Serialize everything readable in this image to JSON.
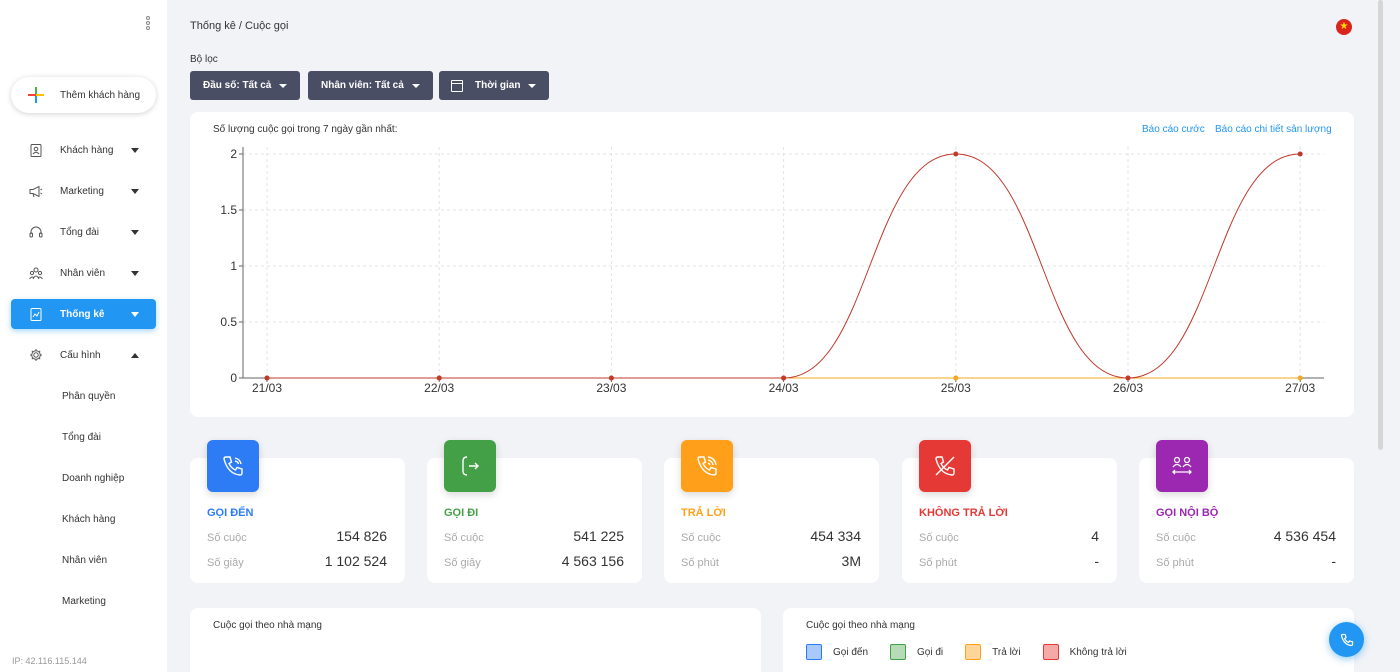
{
  "sidebar": {
    "add_label": "Thêm khách hàng",
    "items": [
      {
        "label": "Khách hàng",
        "icon": "contact-book-icon"
      },
      {
        "label": "Marketing",
        "icon": "megaphone-icon"
      },
      {
        "label": "Tổng đài",
        "icon": "headset-icon"
      },
      {
        "label": "Nhân viên",
        "icon": "team-icon"
      },
      {
        "label": "Thống kê",
        "icon": "report-icon"
      },
      {
        "label": "Cấu hình",
        "icon": "gear-icon"
      }
    ],
    "subitems": [
      "Phân quyền",
      "Tổng đài",
      "Doanh nghiệp",
      "Khách hàng",
      "Nhân viên",
      "Marketing"
    ],
    "ip": "IP: 42.116.115.144"
  },
  "header": {
    "breadcrumb": "Thống kê / Cuộc gọi"
  },
  "filters": {
    "label": "Bộ lọc",
    "prefix": "Đầu số: Tất cả",
    "staff": "Nhân viên: Tất cả",
    "time": "Thời gian"
  },
  "chart_card": {
    "title": "Số lượng cuộc gọi trong 7 ngày gần nhất:",
    "link_fee": "Báo cáo cước",
    "link_detail": "Báo cáo chi tiết sản lượng"
  },
  "chart_data": {
    "type": "line",
    "x": [
      "21/03",
      "22/03",
      "23/03",
      "24/03",
      "25/03",
      "26/03",
      "27/03"
    ],
    "yticks": [
      "0",
      "0.5",
      "1",
      "1.5",
      "2"
    ],
    "ylim": [
      0,
      2
    ],
    "grid": true,
    "series": [
      {
        "values": [
          0,
          0,
          0,
          0,
          2,
          0,
          2
        ],
        "color": "#c0392b"
      },
      {
        "values": [
          0,
          0,
          0,
          0,
          0,
          0,
          0
        ],
        "color": "#f5a623"
      }
    ]
  },
  "stats": [
    {
      "title": "GỌI ĐẾN",
      "color": "#2d7cf6",
      "icon": "phone-incoming-icon",
      "k1": "Số cuộc",
      "v1": "154 826",
      "k2": "Số giây",
      "v2": "1 102 524"
    },
    {
      "title": "GỌI ĐI",
      "color": "#43a047",
      "icon": "phone-outgoing-icon",
      "k1": "Số cuộc",
      "v1": "541 225",
      "k2": "Số giây",
      "v2": "4 563 156"
    },
    {
      "title": "TRẢ LỜI",
      "color": "#ff9f1a",
      "icon": "phone-answered-icon",
      "k1": "Số cuộc",
      "v1": "454 334",
      "k2": "Số phút",
      "v2": "3M"
    },
    {
      "title": "KHÔNG TRẢ LỜI",
      "color": "#e53935",
      "icon": "phone-missed-icon",
      "k1": "Số cuộc",
      "v1": "4",
      "k2": "Số phút",
      "v2": "-"
    },
    {
      "title": "GỌI NỘI BỘ",
      "color": "#9c27b0",
      "icon": "internal-call-icon",
      "k1": "Số cuộc",
      "v1": "4 536 454",
      "k2": "Số phút",
      "v2": "-"
    }
  ],
  "bottom": {
    "left_title": "Cuộc gọi theo nhà mạng",
    "right_title": "Cuộc gọi theo nhà mạng",
    "legend": [
      {
        "label": "Gọi đến",
        "color": "#2d7cf6"
      },
      {
        "label": "Gọi đi",
        "color": "#43a047"
      },
      {
        "label": "Trả lời",
        "color": "#ff9f1a"
      },
      {
        "label": "Không trả lời",
        "color": "#e53935"
      }
    ]
  }
}
